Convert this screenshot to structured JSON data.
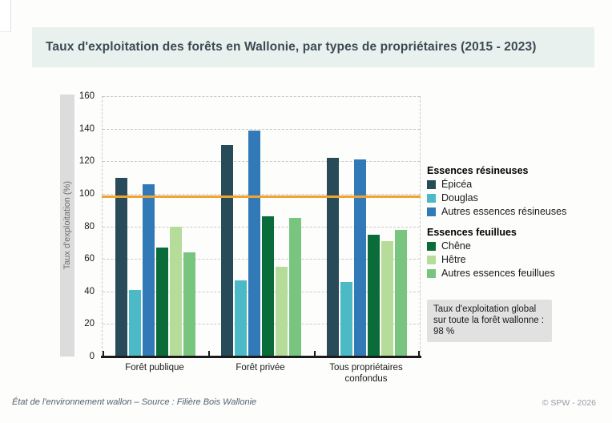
{
  "page": {
    "title": "Taux d'exploitation des forêts en Wallonie, par types de propriétaires (2015 - 2023)",
    "footer_left": "État de l'environnement wallon – Source : Filière Bois Wallonie",
    "footer_right": "© SPW - 2026"
  },
  "chart_data": {
    "type": "bar",
    "title": "Taux d'exploitation des forêts en Wallonie, par types de propriétaires (2015 - 2023)",
    "xlabel": "",
    "ylabel": "Taux d'exploitation (%)",
    "ylim": [
      0,
      160
    ],
    "ytick_step": 20,
    "grid": "horizontal-dashed",
    "legend_position": "right",
    "categories": [
      "Forêt publique",
      "Forêt privée",
      "Tous propriétaires confondus"
    ],
    "series": [
      {
        "name": "Épicéa",
        "group": "Essences résineuses",
        "color": "#274b59",
        "values": [
          110,
          130,
          122
        ]
      },
      {
        "name": "Douglas",
        "group": "Essences résineuses",
        "color": "#4cb9c6",
        "values": [
          41,
          47,
          46
        ]
      },
      {
        "name": "Autres essences résineuses",
        "group": "Essences résineuses",
        "color": "#3279b7",
        "values": [
          106,
          139,
          121
        ]
      },
      {
        "name": "Chêne",
        "group": "Essences feuillues",
        "color": "#0a6c39",
        "values": [
          67,
          86,
          75
        ]
      },
      {
        "name": "Hêtre",
        "group": "Essences feuillues",
        "color": "#b6dc99",
        "values": [
          80,
          55,
          71
        ]
      },
      {
        "name": "Autres essences feuillues",
        "group": "Essences feuillues",
        "color": "#77c57f",
        "values": [
          64,
          85,
          78
        ]
      }
    ],
    "legend": [
      {
        "title": "Essences résineuses",
        "items": [
          "Épicéa",
          "Douglas",
          "Autres essences résineuses"
        ]
      },
      {
        "title": "Essences feuillues",
        "items": [
          "Chêne",
          "Hêtre",
          "Autres essences feuillues"
        ]
      }
    ],
    "reference_line": {
      "value": 98,
      "color": "#f0a330"
    },
    "annotation": "Taux d'exploitation global sur toute la forêt wallonne : 98 %"
  }
}
